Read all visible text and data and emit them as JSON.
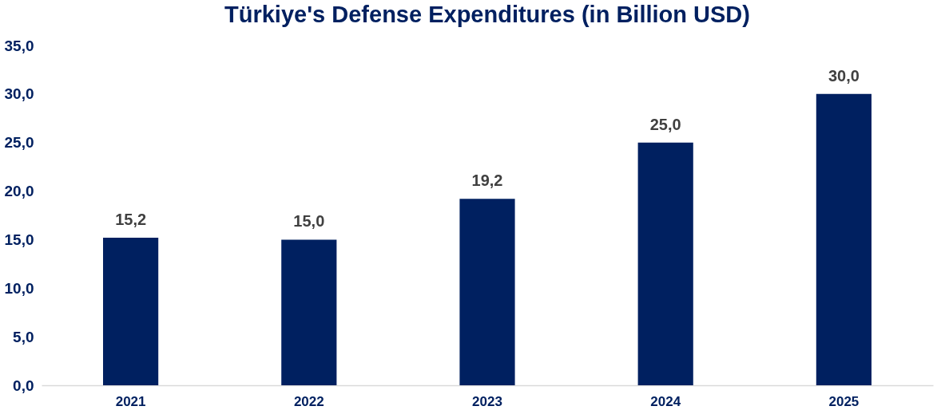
{
  "chart_data": {
    "type": "bar",
    "title": "Türkiye's Defense Expenditures (in Billion USD)",
    "categories": [
      "2021",
      "2022",
      "2023",
      "2024",
      "2025"
    ],
    "values": [
      15.2,
      15.0,
      19.2,
      25.0,
      30.0
    ],
    "value_labels": [
      "15,2",
      "15,0",
      "19,2",
      "25,0",
      "30,0"
    ],
    "color": "#002060",
    "ylim": [
      0,
      35
    ],
    "yticks": [
      {
        "value": 0,
        "label": "0,0"
      },
      {
        "value": 5,
        "label": "5,0"
      },
      {
        "value": 10,
        "label": "10,0"
      },
      {
        "value": 15,
        "label": "15,0"
      },
      {
        "value": 20,
        "label": "20,0"
      },
      {
        "value": 25,
        "label": "25,0"
      },
      {
        "value": 30,
        "label": "30,0"
      },
      {
        "value": 35,
        "label": "35,0"
      }
    ],
    "grid": false
  }
}
